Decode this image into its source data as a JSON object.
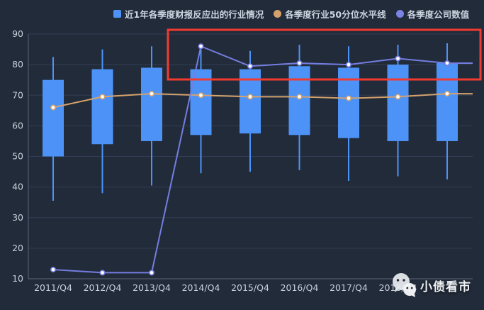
{
  "legend": {
    "items": [
      {
        "label": "近1年各季度财报反应出的行业情况",
        "color": "#4d93f7",
        "shape": "square"
      },
      {
        "label": "各季度行业50分位水平线",
        "color": "#d4a26c",
        "shape": "circle"
      },
      {
        "label": "各季度公司数值",
        "color": "#7b83e3",
        "shape": "circle"
      }
    ]
  },
  "watermark": {
    "text": "小债看市",
    "icon": "wechat-icon"
  },
  "colors": {
    "background": "#222b39",
    "grid": "#323e57",
    "axis": "#5a6478",
    "axis_label": "#c8d0de",
    "candle": "#4d93f7",
    "median_line": "#d4a26c",
    "company_line": "#747ee0",
    "dot_fill": "#ffffff",
    "annotation_red": "#f13b31"
  },
  "chart_data": {
    "type": "candlestick",
    "title": "",
    "xlabel": "",
    "ylabel": "",
    "categories": [
      "2011/Q4",
      "2012/Q4",
      "2013/Q4",
      "2014/Q4",
      "2015/Q4",
      "2016/Q4",
      "2017/Q4",
      "2018/Q4",
      ""
    ],
    "y_axis": {
      "min": 10,
      "max": 90,
      "ticks": [
        10,
        20,
        30,
        40,
        50,
        60,
        70,
        80,
        90
      ]
    },
    "grid": "horizontal gridlines only",
    "legend_position": "top",
    "series": [
      {
        "name": "近1年各季度财报反应出的行业情况",
        "type": "candlestick",
        "color": "#4d93f7",
        "boxes": [
          {
            "low": 35.5,
            "q1": 50,
            "q3": 75,
            "high": 82.5
          },
          {
            "low": 38,
            "q1": 54,
            "q3": 78.5,
            "high": 85
          },
          {
            "low": 40.5,
            "q1": 55,
            "q3": 79,
            "high": 86
          },
          {
            "low": 44.5,
            "q1": 57,
            "q3": 78.5,
            "high": 85
          },
          {
            "low": 45,
            "q1": 57.5,
            "q3": 78.5,
            "high": 84.5
          },
          {
            "low": 45.5,
            "q1": 57,
            "q3": 79.5,
            "high": 86.5
          },
          {
            "low": 42,
            "q1": 56,
            "q3": 79,
            "high": 86
          },
          {
            "low": 43.5,
            "q1": 55,
            "q3": 80,
            "high": 86.5
          },
          {
            "low": 42.5,
            "q1": 55,
            "q3": 80.5,
            "high": 87
          }
        ]
      },
      {
        "name": "各季度行业50分位水平线",
        "type": "line",
        "color": "#d4a26c",
        "values": [
          66,
          69.5,
          70.5,
          70,
          69.5,
          69.5,
          69,
          69.5,
          70.5
        ],
        "extends_to_plot_edge": true
      },
      {
        "name": "各季度公司数值",
        "type": "line",
        "color": "#747ee0",
        "values": [
          13,
          12,
          12,
          86,
          79.5,
          80.5,
          80,
          82,
          80.5
        ],
        "extends_to_plot_edge": true
      }
    ],
    "annotation": {
      "shape": "rectangle",
      "color": "#f13b31",
      "note": "red box drawn over the top-right area highlighting the company-value line from 2014/Q4 onward"
    },
    "notes": "ninth x-axis label is hidden behind the watermark; 2018/Q4 label partially covered"
  }
}
